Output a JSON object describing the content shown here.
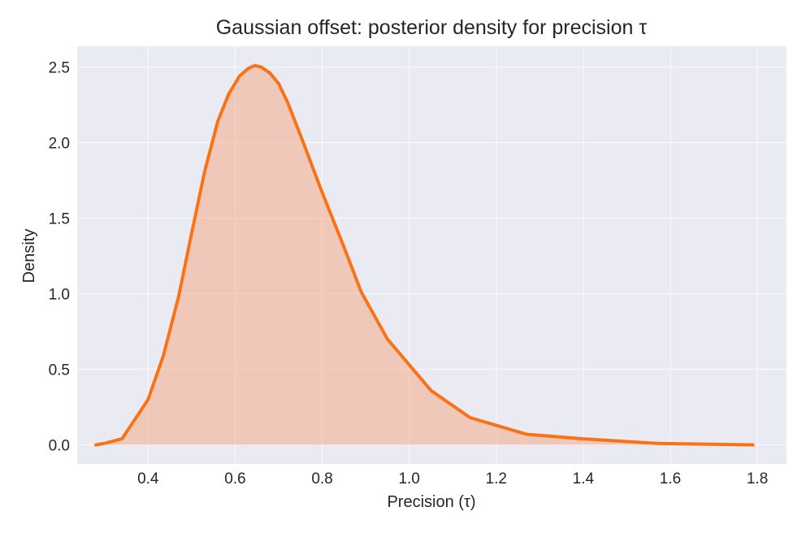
{
  "chart_data": {
    "type": "area",
    "title": "Gaussian offset: posterior density for precision τ",
    "xlabel": "Precision (τ)",
    "ylabel": "Density",
    "xlim": [
      0.237,
      1.867
    ],
    "ylim": [
      -0.126,
      2.637
    ],
    "x_ticks": [
      "0.4",
      "0.6",
      "0.8",
      "1.0",
      "1.2",
      "1.4",
      "1.6",
      "1.8"
    ],
    "y_ticks": [
      "0.0",
      "0.5",
      "1.0",
      "1.5",
      "2.0",
      "2.5"
    ],
    "grid": true,
    "series": [
      {
        "x": [
          0.28,
          0.3,
          0.34,
          0.4,
          0.435,
          0.47,
          0.5,
          0.53,
          0.56,
          0.585,
          0.61,
          0.63,
          0.645,
          0.66,
          0.68,
          0.7,
          0.72,
          0.75,
          0.8,
          0.85,
          0.89,
          0.95,
          1.05,
          1.14,
          1.27,
          1.4,
          1.57,
          1.79
        ],
        "y": [
          0.0,
          0.01,
          0.04,
          0.3,
          0.59,
          0.98,
          1.4,
          1.81,
          2.14,
          2.32,
          2.44,
          2.49,
          2.51,
          2.5,
          2.46,
          2.39,
          2.27,
          2.05,
          1.67,
          1.31,
          1.01,
          0.7,
          0.36,
          0.18,
          0.07,
          0.04,
          0.01,
          0.0
        ],
        "color": "#f97316",
        "fill_color": "#f4a582"
      }
    ],
    "colors": {
      "plot_background": "#eaeaf2",
      "line": "#f97316",
      "fill": "#f4a582",
      "text": "#262626"
    }
  }
}
